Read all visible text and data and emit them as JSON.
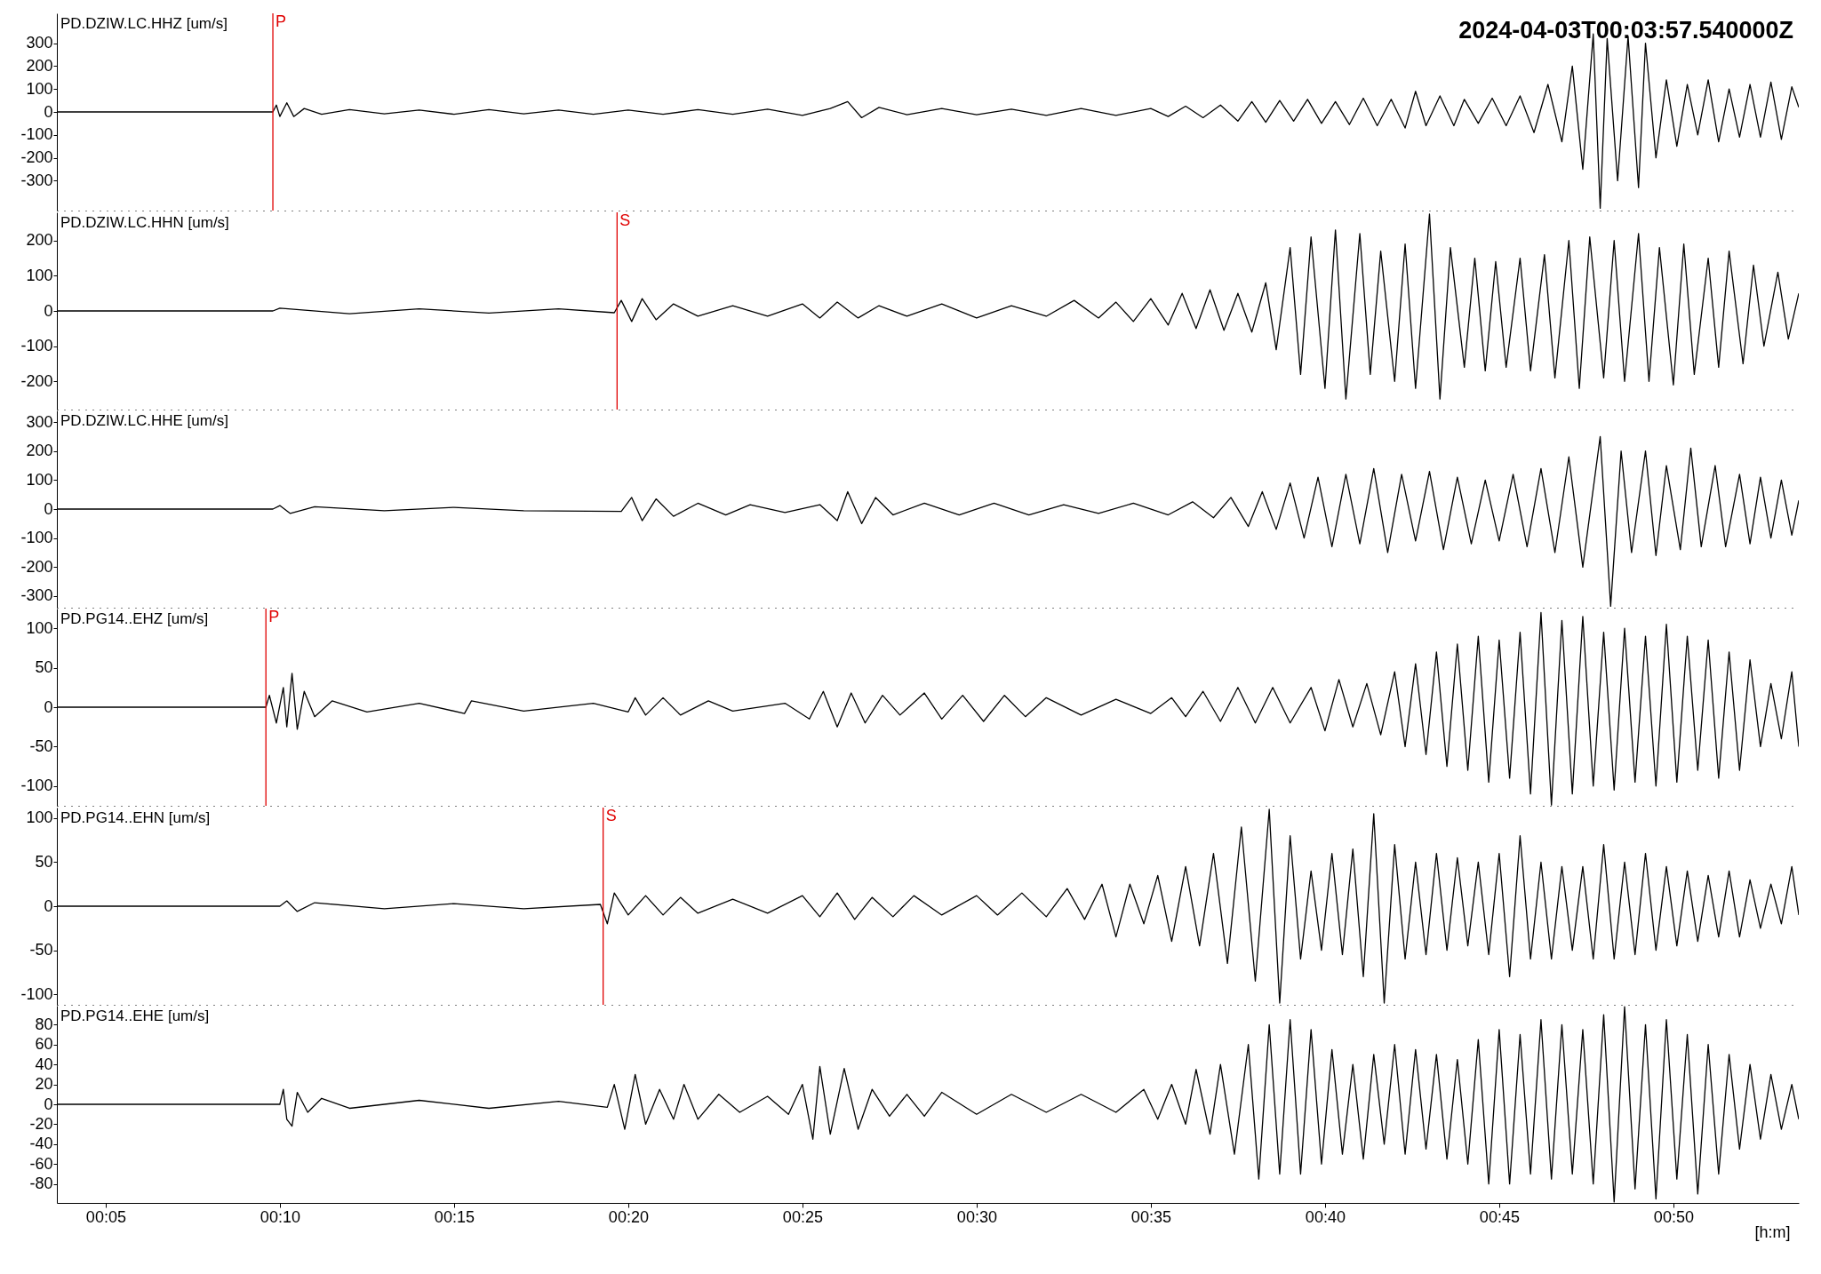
{
  "chart_data": [
    {
      "type": "line",
      "title": "PD.DZIW.LC.HHZ [um/s]",
      "annotations": [
        "2024-04-03T00:03:57.540000Z"
      ],
      "tick_labels": "y",
      "xlim": [
        3.6,
        53.6
      ],
      "ylim": [
        -430,
        430
      ],
      "yticks": [
        -300,
        -200,
        -100,
        0,
        100,
        200,
        300
      ],
      "ref_lines": [
        {
          "axis": "x",
          "value": 9.8,
          "label": "P",
          "color": "#e00000"
        }
      ],
      "series": [
        {
          "color": "#000000",
          "x": [
            3.6,
            9.8,
            9.9,
            10.0,
            10.2,
            10.4,
            10.7,
            11.2,
            12,
            13,
            14,
            15,
            16,
            17,
            18,
            19,
            20,
            21,
            22,
            23,
            24,
            25,
            25.8,
            26.3,
            26.7,
            27.2,
            28,
            29,
            30,
            31,
            32,
            33,
            34,
            35,
            35.5,
            36,
            36.5,
            37,
            37.5,
            37.9,
            38.3,
            38.7,
            39.1,
            39.5,
            39.9,
            40.3,
            40.7,
            41.1,
            41.5,
            41.9,
            42.3,
            42.6,
            42.9,
            43.3,
            43.7,
            44,
            44.4,
            44.8,
            45.2,
            45.6,
            46,
            46.4,
            46.8,
            47.1,
            47.4,
            47.7,
            47.9,
            48.1,
            48.4,
            48.7,
            49,
            49.2,
            49.5,
            49.8,
            50.1,
            50.4,
            50.7,
            51,
            51.3,
            51.6,
            51.9,
            52.2,
            52.5,
            52.8,
            53.1,
            53.4,
            53.6
          ],
          "values": [
            0,
            0,
            30,
            -20,
            40,
            -20,
            15,
            -10,
            10,
            -8,
            8,
            -10,
            10,
            -8,
            8,
            -10,
            8,
            -10,
            10,
            -10,
            12,
            -15,
            15,
            45,
            -25,
            20,
            -12,
            15,
            -12,
            12,
            -15,
            15,
            -15,
            15,
            -20,
            25,
            -25,
            30,
            -40,
            45,
            -45,
            50,
            -40,
            55,
            -50,
            45,
            -55,
            60,
            -60,
            55,
            -70,
            90,
            -60,
            70,
            -60,
            55,
            -50,
            60,
            -60,
            70,
            -90,
            120,
            -130,
            200,
            -250,
            340,
            -420,
            320,
            -300,
            330,
            -330,
            300,
            -200,
            140,
            -150,
            120,
            -100,
            140,
            -130,
            100,
            -110,
            120,
            -110,
            130,
            -120,
            110,
            20
          ]
        }
      ]
    },
    {
      "type": "line",
      "title": "PD.DZIW.LC.HHN [um/s]",
      "tick_labels": "y",
      "xlim": [
        3.6,
        53.6
      ],
      "ylim": [
        -280,
        280
      ],
      "yticks": [
        -200,
        -100,
        0,
        100,
        200
      ],
      "ref_lines": [
        {
          "axis": "x",
          "value": 19.68,
          "label": "S",
          "color": "#e00000"
        }
      ],
      "series": [
        {
          "color": "#000000",
          "x": [
            3.6,
            9.8,
            10,
            12,
            14,
            16,
            18,
            19.6,
            19.8,
            20.1,
            20.4,
            20.8,
            21.3,
            22,
            23,
            24,
            25,
            25.5,
            26,
            26.6,
            27.2,
            28,
            29,
            30,
            31,
            32,
            32.8,
            33.5,
            34,
            34.5,
            35,
            35.5,
            35.9,
            36.3,
            36.7,
            37.1,
            37.5,
            37.9,
            38.3,
            38.6,
            39,
            39.3,
            39.6,
            40,
            40.3,
            40.6,
            41,
            41.3,
            41.6,
            42,
            42.3,
            42.6,
            43,
            43.3,
            43.6,
            44,
            44.3,
            44.6,
            44.9,
            45.2,
            45.6,
            45.9,
            46.3,
            46.6,
            47,
            47.3,
            47.6,
            48,
            48.3,
            48.6,
            49,
            49.3,
            49.6,
            50,
            50.3,
            50.6,
            51,
            51.3,
            51.6,
            52,
            52.3,
            52.6,
            53,
            53.3,
            53.6
          ],
          "values": [
            0,
            0,
            8,
            -8,
            6,
            -6,
            6,
            -5,
            30,
            -30,
            35,
            -25,
            20,
            -15,
            15,
            -15,
            20,
            -20,
            25,
            -20,
            15,
            -15,
            20,
            -20,
            15,
            -15,
            30,
            -20,
            25,
            -30,
            35,
            -40,
            50,
            -50,
            60,
            -55,
            50,
            -60,
            80,
            -110,
            180,
            -180,
            210,
            -220,
            230,
            -250,
            220,
            -180,
            170,
            -200,
            190,
            -220,
            275,
            -250,
            180,
            -160,
            150,
            -170,
            140,
            -160,
            150,
            -170,
            160,
            -190,
            200,
            -220,
            210,
            -190,
            200,
            -200,
            220,
            -200,
            180,
            -210,
            190,
            -180,
            150,
            -160,
            170,
            -150,
            130,
            -100,
            110,
            -80,
            50
          ]
        }
      ]
    },
    {
      "type": "line",
      "title": "PD.DZIW.LC.HHE [um/s]",
      "tick_labels": "y",
      "xlim": [
        3.6,
        53.6
      ],
      "ylim": [
        -340,
        340
      ],
      "yticks": [
        -300,
        -200,
        -100,
        0,
        100,
        200,
        300
      ],
      "series": [
        {
          "color": "#000000",
          "x": [
            3.6,
            9.8,
            10,
            10.3,
            11,
            13,
            15,
            17,
            19.8,
            20.1,
            20.4,
            20.8,
            21.3,
            22,
            22.8,
            23.5,
            24.5,
            25.5,
            26,
            26.3,
            26.7,
            27.1,
            27.6,
            28.5,
            29.5,
            30.5,
            31.5,
            32.5,
            33.5,
            34.5,
            35.5,
            36.2,
            36.8,
            37.3,
            37.8,
            38.2,
            38.6,
            39,
            39.4,
            39.8,
            40.2,
            40.6,
            41,
            41.4,
            41.8,
            42.2,
            42.6,
            43,
            43.4,
            43.8,
            44.2,
            44.6,
            45,
            45.4,
            45.8,
            46.2,
            46.6,
            47,
            47.4,
            47.9,
            48.2,
            48.5,
            48.8,
            49.2,
            49.5,
            49.8,
            50.2,
            50.5,
            50.8,
            51.2,
            51.5,
            51.9,
            52.2,
            52.5,
            52.8,
            53.1,
            53.4,
            53.6
          ],
          "values": [
            0,
            0,
            12,
            -15,
            8,
            -6,
            6,
            -6,
            -8,
            40,
            -40,
            35,
            -25,
            20,
            -20,
            15,
            -12,
            15,
            -40,
            60,
            -50,
            40,
            -20,
            20,
            -20,
            20,
            -20,
            15,
            -15,
            20,
            -20,
            25,
            -30,
            40,
            -60,
            60,
            -70,
            90,
            -100,
            110,
            -130,
            120,
            -120,
            140,
            -150,
            120,
            -110,
            130,
            -140,
            110,
            -120,
            100,
            -110,
            120,
            -130,
            140,
            -150,
            180,
            -200,
            250,
            -335,
            200,
            -150,
            200,
            -160,
            150,
            -140,
            210,
            -130,
            150,
            -130,
            120,
            -120,
            110,
            -100,
            100,
            -90,
            30
          ]
        }
      ]
    },
    {
      "type": "line",
      "title": "PD.PG14..EHZ [um/s]",
      "tick_labels": "y",
      "xlim": [
        3.6,
        53.6
      ],
      "ylim": [
        -125,
        125
      ],
      "yticks": [
        -100,
        -50,
        0,
        50,
        100
      ],
      "ref_lines": [
        {
          "axis": "x",
          "value": 9.6,
          "label": "P",
          "color": "#e00000"
        }
      ],
      "series": [
        {
          "color": "#000000",
          "x": [
            3.6,
            9.6,
            9.7,
            9.9,
            10.1,
            10.2,
            10.35,
            10.5,
            10.7,
            11,
            11.5,
            12.5,
            14,
            15.3,
            15.5,
            17,
            19,
            20,
            20.2,
            20.5,
            21,
            21.5,
            22.3,
            23,
            24.5,
            25.2,
            25.6,
            26,
            26.4,
            26.8,
            27.3,
            27.8,
            28.5,
            29,
            29.6,
            30.2,
            30.8,
            31.4,
            32,
            33,
            34,
            35,
            35.6,
            36,
            36.5,
            37,
            37.5,
            38,
            38.5,
            39,
            39.6,
            40,
            40.4,
            40.8,
            41.2,
            41.6,
            42,
            42.3,
            42.6,
            42.9,
            43.2,
            43.5,
            43.8,
            44.1,
            44.4,
            44.7,
            45,
            45.3,
            45.6,
            45.9,
            46.2,
            46.5,
            46.8,
            47.1,
            47.4,
            47.7,
            48,
            48.3,
            48.6,
            48.9,
            49.2,
            49.5,
            49.8,
            50.1,
            50.4,
            50.7,
            51,
            51.3,
            51.6,
            51.9,
            52.2,
            52.5,
            52.8,
            53.1,
            53.4,
            53.6
          ],
          "values": [
            0,
            0,
            15,
            -20,
            25,
            -25,
            43,
            -28,
            20,
            -12,
            8,
            -6,
            5,
            -8,
            8,
            -5,
            5,
            -6,
            12,
            -10,
            12,
            -10,
            8,
            -5,
            5,
            -15,
            20,
            -25,
            18,
            -20,
            15,
            -10,
            18,
            -15,
            15,
            -18,
            15,
            -12,
            12,
            -10,
            10,
            -8,
            12,
            -12,
            20,
            -18,
            25,
            -20,
            25,
            -20,
            25,
            -30,
            35,
            -25,
            30,
            -35,
            45,
            -50,
            55,
            -60,
            70,
            -75,
            80,
            -80,
            90,
            -95,
            85,
            -90,
            95,
            -110,
            120,
            -124,
            110,
            -110,
            115,
            -100,
            95,
            -105,
            100,
            -95,
            90,
            -100,
            105,
            -95,
            90,
            -80,
            85,
            -90,
            70,
            -80,
            60,
            -50,
            30,
            -40,
            45,
            -50
          ]
        }
      ]
    },
    {
      "type": "line",
      "title": "PD.PG14..EHN [um/s]",
      "tick_labels": "y",
      "xlim": [
        3.6,
        53.6
      ],
      "ylim": [
        -112,
        112
      ],
      "yticks": [
        -100,
        -50,
        0,
        50,
        100
      ],
      "ref_lines": [
        {
          "axis": "x",
          "value": 19.28,
          "label": "S",
          "color": "#e00000"
        }
      ],
      "series": [
        {
          "color": "#000000",
          "x": [
            3.6,
            10,
            10.2,
            10.5,
            11,
            13,
            15,
            17,
            19.2,
            19.4,
            19.6,
            20,
            20.5,
            21,
            21.5,
            22,
            23,
            24,
            25,
            25.5,
            26,
            26.5,
            27,
            27.6,
            28.2,
            29,
            30,
            30.6,
            31.3,
            32,
            32.6,
            33.1,
            33.6,
            34,
            34.4,
            34.8,
            35.2,
            35.6,
            36,
            36.4,
            36.8,
            37.2,
            37.6,
            38,
            38.4,
            38.7,
            39,
            39.3,
            39.6,
            39.9,
            40.2,
            40.5,
            40.8,
            41.1,
            41.4,
            41.7,
            42,
            42.3,
            42.6,
            42.9,
            43.2,
            43.5,
            43.8,
            44.1,
            44.4,
            44.7,
            45,
            45.3,
            45.6,
            45.9,
            46.2,
            46.5,
            46.8,
            47.1,
            47.4,
            47.7,
            48,
            48.3,
            48.6,
            48.9,
            49.2,
            49.5,
            49.8,
            50.1,
            50.4,
            50.7,
            51,
            51.3,
            51.6,
            51.9,
            52.2,
            52.5,
            52.8,
            53.1,
            53.4,
            53.6
          ],
          "values": [
            0,
            0,
            6,
            -6,
            4,
            -3,
            3,
            -3,
            2,
            -20,
            15,
            -10,
            12,
            -10,
            10,
            -8,
            8,
            -8,
            12,
            -12,
            15,
            -15,
            10,
            -12,
            12,
            -10,
            12,
            -10,
            15,
            -12,
            20,
            -15,
            25,
            -35,
            25,
            -20,
            35,
            -40,
            45,
            -45,
            60,
            -65,
            90,
            -85,
            110,
            -110,
            80,
            -60,
            40,
            -50,
            60,
            -55,
            65,
            -80,
            105,
            -110,
            70,
            -60,
            50,
            -55,
            60,
            -50,
            55,
            -45,
            50,
            -55,
            60,
            -80,
            80,
            -60,
            50,
            -60,
            45,
            -50,
            45,
            -60,
            70,
            -60,
            50,
            -55,
            60,
            -50,
            45,
            -45,
            40,
            -40,
            35,
            -35,
            40,
            -35,
            30,
            -25,
            25,
            -20,
            45,
            -10
          ]
        }
      ]
    },
    {
      "type": "line",
      "title": "PD.PG14..EHE [um/s]",
      "xlabel": "[h:m]",
      "xlim": [
        3.6,
        53.6
      ],
      "xticks": [
        {
          "value": 5,
          "label": "00:05"
        },
        {
          "value": 10,
          "label": "00:10"
        },
        {
          "value": 15,
          "label": "00:15"
        },
        {
          "value": 20,
          "label": "00:20"
        },
        {
          "value": 25,
          "label": "00:25"
        },
        {
          "value": 30,
          "label": "00:30"
        },
        {
          "value": 35,
          "label": "00:35"
        },
        {
          "value": 40,
          "label": "00:40"
        },
        {
          "value": 45,
          "label": "00:45"
        },
        {
          "value": 50,
          "label": "00:50"
        }
      ],
      "ylim": [
        -99,
        99
      ],
      "yticks": [
        -80,
        -60,
        -40,
        -20,
        0,
        20,
        40,
        60,
        80
      ],
      "series": [
        {
          "color": "#000000",
          "x": [
            3.6,
            10,
            10.1,
            10.2,
            10.35,
            10.5,
            10.8,
            11.2,
            12,
            14,
            16,
            18,
            19.4,
            19.6,
            19.9,
            20.2,
            20.5,
            20.9,
            21.3,
            21.6,
            22,
            22.6,
            23.2,
            24,
            24.6,
            25,
            25.3,
            25.5,
            25.8,
            26.2,
            26.6,
            27,
            27.5,
            28,
            28.5,
            29,
            30,
            31,
            32,
            33,
            34,
            34.8,
            35.2,
            35.6,
            36,
            36.3,
            36.7,
            37,
            37.4,
            37.8,
            38.1,
            38.4,
            38.7,
            39,
            39.3,
            39.6,
            39.9,
            40.2,
            40.5,
            40.8,
            41.1,
            41.4,
            41.7,
            42,
            42.3,
            42.6,
            42.9,
            43.2,
            43.5,
            43.8,
            44.1,
            44.4,
            44.7,
            45,
            45.3,
            45.6,
            45.9,
            46.2,
            46.5,
            46.8,
            47.1,
            47.4,
            47.7,
            48,
            48.3,
            48.6,
            48.9,
            49.2,
            49.5,
            49.8,
            50.1,
            50.4,
            50.7,
            51,
            51.3,
            51.6,
            51.9,
            52.2,
            52.5,
            52.8,
            53.1,
            53.4,
            53.6
          ],
          "values": [
            0,
            0,
            15,
            -15,
            -22,
            12,
            -8,
            6,
            -4,
            4,
            -4,
            3,
            -3,
            20,
            -25,
            30,
            -20,
            15,
            -15,
            20,
            -15,
            10,
            -8,
            8,
            -10,
            20,
            -35,
            38,
            -30,
            36,
            -25,
            15,
            -12,
            10,
            -12,
            12,
            -10,
            10,
            -8,
            10,
            -8,
            15,
            -15,
            20,
            -20,
            35,
            -30,
            40,
            -50,
            60,
            -75,
            80,
            -70,
            85,
            -70,
            75,
            -60,
            55,
            -50,
            40,
            -55,
            50,
            -40,
            60,
            -50,
            55,
            -45,
            50,
            -55,
            45,
            -60,
            65,
            -80,
            75,
            -80,
            70,
            -70,
            85,
            -75,
            80,
            -70,
            75,
            -80,
            90,
            -98,
            98,
            -85,
            80,
            -95,
            85,
            -75,
            70,
            -90,
            60,
            -70,
            50,
            -45,
            40,
            -35,
            30,
            -25,
            20,
            -15
          ]
        }
      ]
    }
  ]
}
